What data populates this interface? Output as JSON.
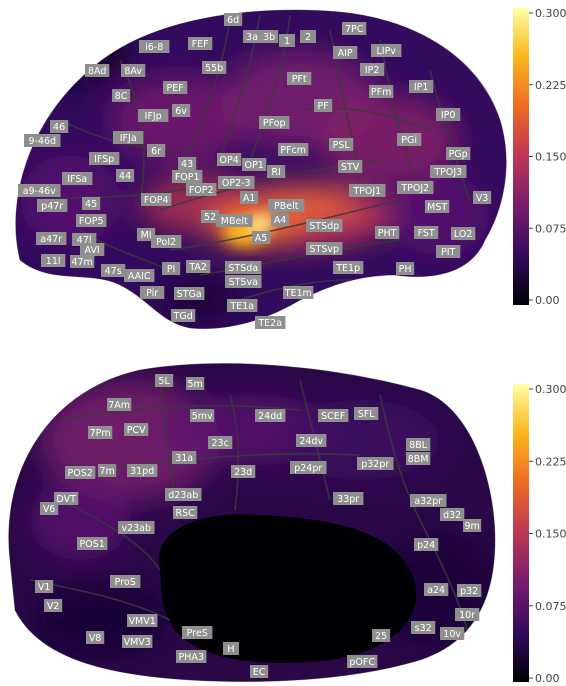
{
  "colormap": {
    "stops": [
      "#000004",
      "#320a5e",
      "#781c6d",
      "#bc3754",
      "#ed6925",
      "#fbb61a",
      "#fcffa4"
    ]
  },
  "colorbar": {
    "ticks": [
      "0.300",
      "0.225",
      "0.150",
      "0.0750",
      "0.00"
    ]
  },
  "lateral_regions": [
    "6d",
    "3a",
    "3b",
    "1",
    "2",
    "7PC",
    "i6-8",
    "FEF",
    "AIP",
    "LIPv",
    "8Ad",
    "8Av",
    "55b",
    "IP2",
    "PFt",
    "8C",
    "PEF",
    "PFm",
    "IP1",
    "IFJp",
    "6v",
    "PF",
    "IP0",
    "46",
    "PFop",
    "9-46d",
    "IFJa",
    "PGi",
    "6r",
    "PSL",
    "PFcm",
    "PGp",
    "IFSp",
    "43",
    "OP4",
    "OP1",
    "STV",
    "TPOJ3",
    "RI",
    "IFSa",
    "44",
    "FOP1",
    "OP2-3",
    "TPOJ1",
    "TPOJ2",
    "a9-46v",
    "FOP2",
    "A1",
    "V3",
    "p47r",
    "45",
    "FOP4",
    "PBelt",
    "MST",
    "52",
    "MBelt",
    "A4",
    "FOP5",
    "STSdp",
    "a47r",
    "47l",
    "MI",
    "PoI2",
    "A5",
    "PHT",
    "FST",
    "LO2",
    "AVI",
    "STSvp",
    "11l",
    "47m",
    "PIT",
    "47s",
    "AAIC",
    "PI",
    "TA2",
    "STSda",
    "TE1p",
    "PH",
    "STSva",
    "Pir",
    "STGa",
    "TE1m",
    "TE1a",
    "TGd",
    "TE2a"
  ],
  "medial_regions": [
    "5L",
    "5m",
    "7Am",
    "5mv",
    "24dd",
    "SCEF",
    "SFL",
    "7Pm",
    "PCV",
    "24dv",
    "23c",
    "8BL",
    "8BM",
    "31a",
    "p32pr",
    "POS2",
    "7m",
    "31pd",
    "23d",
    "p24pr",
    "DVT",
    "d23ab",
    "33pr",
    "a32pr",
    "V6",
    "d32",
    "RSC",
    "9m",
    "v23ab",
    "POS1",
    "p24",
    "ProS",
    "V1",
    "a24",
    "p32",
    "V2",
    "VMV1",
    "10r",
    "PreS",
    "25",
    "s32",
    "10v",
    "V8",
    "VMV3",
    "H",
    "PHA3",
    "pOFC",
    "EC"
  ],
  "values": {
    "6d": 0.14,
    "3a": 0.1,
    "3b": 0.1,
    "1": 0.1,
    "2": 0.08,
    "7PC": 0.1,
    "i6-8": 0.1,
    "FEF": 0.12,
    "AIP": 0.12,
    "LIPv": 0.09,
    "8Ad": 0.1,
    "8Av": 0.1,
    "55b": 0.11,
    "IP2": 0.12,
    "PFt": 0.13,
    "8C": 0.11,
    "PEF": 0.12,
    "PFm": 0.14,
    "IP1": 0.12,
    "IFJp": 0.12,
    "6v": 0.13,
    "PF": 0.13,
    "IP0": 0.11,
    "46": 0.1,
    "PFop": 0.14,
    "9-46d": 0.1,
    "IFJa": 0.11,
    "PGi": 0.13,
    "6r": 0.12,
    "PSL": 0.14,
    "PFcm": 0.15,
    "PGp": 0.11,
    "IFSp": 0.1,
    "43": 0.16,
    "OP4": 0.16,
    "OP1": 0.18,
    "STV": 0.15,
    "TPOJ3": 0.11,
    "RI": 0.2,
    "IFSa": 0.1,
    "44": 0.11,
    "FOP1": 0.15,
    "OP2-3": 0.18,
    "TPOJ1": 0.15,
    "TPOJ2": 0.13,
    "a9-46v": 0.09,
    "FOP2": 0.15,
    "A1": 0.26,
    "V3": 0.08,
    "p47r": 0.09,
    "45": 0.1,
    "FOP4": 0.14,
    "PBelt": 0.25,
    "MST": 0.1,
    "52": 0.23,
    "MBelt": 0.27,
    "A4": 0.27,
    "FOP5": 0.12,
    "STSdp": 0.2,
    "a47r": 0.09,
    "47l": 0.09,
    "MI": 0.14,
    "PoI2": 0.16,
    "A5": 0.29,
    "PHT": 0.11,
    "FST": 0.11,
    "LO2": 0.09,
    "AVI": 0.11,
    "STSvp": 0.16,
    "11l": 0.07,
    "47m": 0.08,
    "PIT": 0.08,
    "47s": 0.09,
    "AAIC": 0.11,
    "PI": 0.16,
    "TA2": 0.17,
    "STSda": 0.17,
    "TE1p": 0.12,
    "PH": 0.09,
    "STSva": 0.15,
    "Pir": 0.09,
    "STGa": 0.12,
    "TE1m": 0.1,
    "TE1a": 0.09,
    "TGd": 0.07,
    "TE2a": 0.08,
    "5L": 0.07,
    "5m": 0.07,
    "7Am": 0.1,
    "5mv": 0.08,
    "24dd": 0.06,
    "SCEF": 0.05,
    "SFL": 0.05,
    "7Pm": 0.11,
    "PCV": 0.12,
    "24dv": 0.07,
    "23c": 0.09,
    "8BL": 0.06,
    "8BM": 0.06,
    "31a": 0.11,
    "p32pr": 0.06,
    "POS2": 0.13,
    "7m": 0.13,
    "31pd": 0.13,
    "23d": 0.09,
    "p24pr": 0.07,
    "DVT": 0.1,
    "d23ab": 0.12,
    "33pr": 0.06,
    "a32pr": 0.05,
    "V6": 0.09,
    "d32": 0.04,
    "RSC": 0.11,
    "9m": 0.05,
    "v23ab": 0.11,
    "POS1": 0.1,
    "p24": 0.05,
    "ProS": 0.06,
    "V1": 0.05,
    "a24": 0.04,
    "p32": 0.04,
    "V2": 0.05,
    "VMV1": 0.05,
    "10r": 0.03,
    "PreS": 0.05,
    "25": 0.03,
    "s32": 0.03,
    "10v": 0.03,
    "V8": 0.05,
    "VMV3": 0.05,
    "H": 0.04,
    "PHA3": 0.05,
    "pOFC": 0.04,
    "EC": 0.04
  }
}
